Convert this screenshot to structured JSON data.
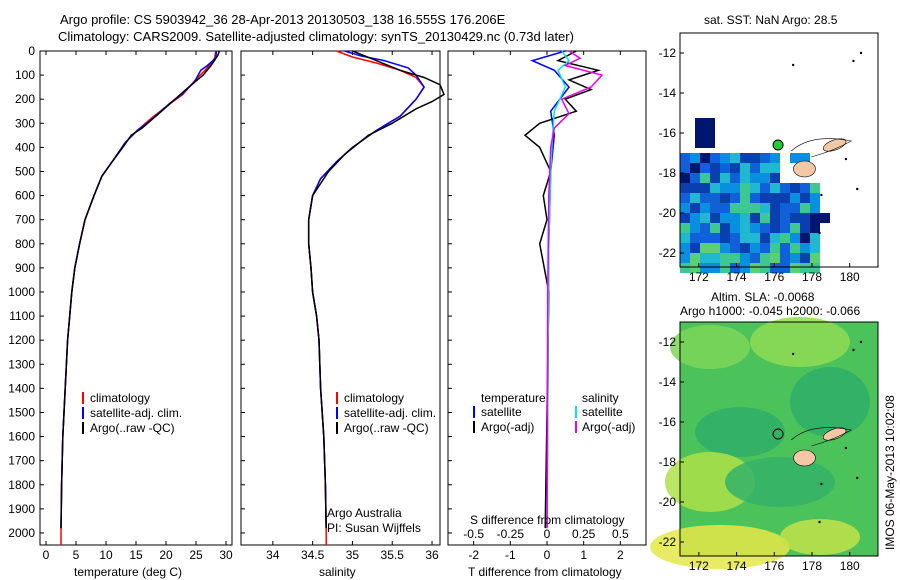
{
  "header": {
    "line1": "Argo profile: CS 5903942_36 28-Apr-2013 20130503_138 16.555S 176.206E",
    "line2": "Climatology: CARS2009. Satellite-adjusted climatology: synTS_20130429.nc (0.73d later)"
  },
  "colors": {
    "climatology": "#ff0000",
    "satellite": "#0000ff",
    "argo": "#000000",
    "satellite_salinity": "#00e5ee",
    "argo_salinity": "#ee00ee",
    "land": "#f5c8a5"
  },
  "depth_axis": {
    "ylim": [
      0,
      2050
    ],
    "ticks": [
      0,
      100,
      200,
      300,
      400,
      500,
      600,
      700,
      800,
      900,
      1000,
      1100,
      1200,
      1300,
      1400,
      1500,
      1600,
      1700,
      1800,
      1900,
      2000
    ]
  },
  "chart_data": [
    {
      "type": "line",
      "name": "temperature",
      "xlabel": "temperature (deg C)",
      "ylabel": "",
      "xlim": [
        -1,
        31
      ],
      "ylim": [
        0,
        2050
      ],
      "xticks": [
        0,
        5,
        10,
        15,
        20,
        25,
        30
      ],
      "legend": [
        "climatology",
        "satellite-adj. clim.",
        "Argo(..raw -QC)"
      ],
      "series": [
        {
          "name": "climatology",
          "color": "#ff0000",
          "points": [
            [
              28.3,
              0
            ],
            [
              28.1,
              30
            ],
            [
              27.2,
              60
            ],
            [
              26.5,
              80
            ],
            [
              24.9,
              120
            ],
            [
              22.8,
              180
            ],
            [
              20.6,
              220
            ],
            [
              17.5,
              280
            ],
            [
              15.2,
              330
            ],
            [
              13.2,
              380
            ],
            [
              11.3,
              450
            ],
            [
              9.3,
              520
            ],
            [
              8.0,
              600
            ],
            [
              6.5,
              700
            ],
            [
              5.6,
              800
            ],
            [
              4.8,
              900
            ],
            [
              4.3,
              1000
            ],
            [
              3.6,
              1200
            ],
            [
              3.2,
              1400
            ],
            [
              2.8,
              1600
            ],
            [
              2.6,
              1800
            ],
            [
              2.5,
              2000
            ],
            [
              2.5,
              2050
            ]
          ]
        },
        {
          "name": "satellite-adj. clim.",
          "color": "#0000ff",
          "points": [
            [
              28.4,
              0
            ],
            [
              28.3,
              30
            ],
            [
              26.9,
              60
            ],
            [
              25.8,
              80
            ],
            [
              24.7,
              130
            ],
            [
              22.6,
              180
            ],
            [
              20.5,
              220
            ],
            [
              17.8,
              280
            ],
            [
              15.2,
              330
            ],
            [
              13.2,
              380
            ],
            [
              11.3,
              450
            ],
            [
              9.3,
              520
            ],
            [
              8.0,
              600
            ],
            [
              6.5,
              700
            ],
            [
              5.6,
              800
            ],
            [
              4.8,
              900
            ],
            [
              4.3,
              1000
            ],
            [
              3.6,
              1200
            ],
            [
              3.2,
              1400
            ],
            [
              2.8,
              1600
            ],
            [
              2.6,
              1800
            ],
            [
              2.5,
              1980
            ]
          ]
        },
        {
          "name": "Argo(..raw -QC)",
          "color": "#000000",
          "points": [
            [
              28.9,
              0
            ],
            [
              28.6,
              20
            ],
            [
              27.5,
              60
            ],
            [
              26.2,
              100
            ],
            [
              23.8,
              150
            ],
            [
              21.5,
              200
            ],
            [
              18.8,
              260
            ],
            [
              16.0,
              320
            ],
            [
              14.2,
              350
            ],
            [
              12.8,
              400
            ],
            [
              11.0,
              460
            ],
            [
              9.3,
              520
            ],
            [
              8.0,
              600
            ],
            [
              6.5,
              700
            ],
            [
              5.6,
              800
            ],
            [
              4.8,
              900
            ],
            [
              4.3,
              1000
            ],
            [
              3.6,
              1200
            ],
            [
              3.2,
              1400
            ],
            [
              2.8,
              1600
            ],
            [
              2.6,
              1800
            ],
            [
              2.5,
              1980
            ]
          ]
        }
      ]
    },
    {
      "type": "line",
      "name": "salinity",
      "xlabel": "salinity",
      "ylabel": "",
      "xlim": [
        33.6,
        36.1
      ],
      "ylim": [
        0,
        2050
      ],
      "xticks": [
        34,
        34.5,
        35,
        35.5,
        36
      ],
      "legend": [
        "climatology",
        "satellite-adj. clim.",
        "Argo(..raw -QC)"
      ],
      "annotation": [
        "Argo Australia",
        "PI: Susan Wijffels"
      ],
      "series": [
        {
          "name": "climatology",
          "color": "#ff0000",
          "points": [
            [
              34.8,
              0
            ],
            [
              35.0,
              25
            ],
            [
              35.3,
              50
            ],
            [
              35.6,
              80
            ],
            [
              35.8,
              110
            ],
            [
              35.9,
              150
            ],
            [
              35.8,
              200
            ],
            [
              35.6,
              270
            ],
            [
              35.3,
              330
            ],
            [
              35.0,
              400
            ],
            [
              34.8,
              460
            ],
            [
              34.6,
              530
            ],
            [
              34.5,
              600
            ],
            [
              34.45,
              700
            ],
            [
              34.45,
              800
            ],
            [
              34.48,
              900
            ],
            [
              34.5,
              1000
            ],
            [
              34.55,
              1100
            ],
            [
              34.58,
              1200
            ],
            [
              34.6,
              1400
            ],
            [
              34.64,
              1600
            ],
            [
              34.66,
              1800
            ],
            [
              34.67,
              2000
            ],
            [
              34.67,
              2050
            ]
          ]
        },
        {
          "name": "satellite-adj. clim.",
          "color": "#0000ff",
          "points": [
            [
              34.9,
              0
            ],
            [
              35.1,
              20
            ],
            [
              35.4,
              40
            ],
            [
              35.7,
              70
            ],
            [
              35.8,
              100
            ],
            [
              35.9,
              150
            ],
            [
              35.8,
              200
            ],
            [
              35.6,
              270
            ],
            [
              35.3,
              330
            ],
            [
              35.0,
              400
            ],
            [
              34.8,
              460
            ],
            [
              34.6,
              530
            ],
            [
              34.5,
              600
            ],
            [
              34.45,
              700
            ],
            [
              34.45,
              800
            ],
            [
              34.48,
              900
            ],
            [
              34.5,
              1000
            ],
            [
              34.55,
              1100
            ],
            [
              34.58,
              1200
            ],
            [
              34.6,
              1400
            ],
            [
              34.64,
              1600
            ],
            [
              34.66,
              1800
            ],
            [
              34.67,
              1980
            ]
          ]
        },
        {
          "name": "Argo(..raw -QC)",
          "color": "#000000",
          "points": [
            [
              35.0,
              0
            ],
            [
              35.3,
              40
            ],
            [
              35.6,
              80
            ],
            [
              35.9,
              110
            ],
            [
              36.1,
              140
            ],
            [
              36.15,
              180
            ],
            [
              36.0,
              210
            ],
            [
              35.8,
              240
            ],
            [
              35.5,
              300
            ],
            [
              35.2,
              350
            ],
            [
              34.9,
              430
            ],
            [
              34.7,
              500
            ],
            [
              34.6,
              550
            ],
            [
              34.5,
              600
            ],
            [
              34.45,
              700
            ],
            [
              34.45,
              800
            ],
            [
              34.48,
              900
            ],
            [
              34.5,
              1000
            ],
            [
              34.55,
              1100
            ],
            [
              34.58,
              1200
            ],
            [
              34.6,
              1400
            ],
            [
              34.64,
              1600
            ],
            [
              34.66,
              1800
            ],
            [
              34.67,
              1980
            ]
          ]
        }
      ]
    },
    {
      "type": "line",
      "name": "difference from climatology",
      "xlabel": "T difference from climatology",
      "xlabel2": "S difference from climatology",
      "xlim": [
        -2.7,
        2.7
      ],
      "ylim": [
        0,
        2050
      ],
      "xticks_T": [
        -2,
        -1,
        0,
        1,
        2
      ],
      "xticks_S_labels": [
        "-0.5",
        "-0.25",
        "0",
        "0.25",
        "0.5"
      ],
      "xticks_S_positions": [
        -2,
        -1,
        0,
        1,
        2
      ],
      "legend_headers": [
        "temperature",
        "salinity"
      ],
      "legend": [
        "satellite",
        "Argo(-adj)",
        "satellite",
        "Argo(-adj)"
      ],
      "series": [
        {
          "name": "temperature satellite",
          "color": "#0000ff",
          "points": [
            [
              0.5,
              0
            ],
            [
              -0.4,
              40
            ],
            [
              0.2,
              80
            ],
            [
              0.6,
              150
            ],
            [
              0.1,
              250
            ],
            [
              0.2,
              350
            ],
            [
              0.1,
              500
            ],
            [
              0.05,
              800
            ],
            [
              0.02,
              1500
            ],
            [
              0.0,
              1980
            ]
          ]
        },
        {
          "name": "temperature Argo(-adj)",
          "color": "#000000",
          "points": [
            [
              0.8,
              0
            ],
            [
              0.3,
              40
            ],
            [
              1.4,
              80
            ],
            [
              0.6,
              120
            ],
            [
              1.2,
              160
            ],
            [
              0.5,
              200
            ],
            [
              0.8,
              250
            ],
            [
              -0.2,
              300
            ],
            [
              -0.6,
              350
            ],
            [
              -0.2,
              400
            ],
            [
              0.1,
              500
            ],
            [
              -0.1,
              600
            ],
            [
              0.0,
              700
            ],
            [
              -0.2,
              800
            ],
            [
              0.05,
              1000
            ],
            [
              0.0,
              1500
            ],
            [
              -0.05,
              1980
            ]
          ]
        },
        {
          "name": "salinity satellite",
          "color": "#00e5ee",
          "points": [
            [
              0.4,
              0
            ],
            [
              0.6,
              40
            ],
            [
              0.3,
              80
            ],
            [
              0.5,
              150
            ],
            [
              0.2,
              250
            ],
            [
              0.15,
              350
            ],
            [
              0.1,
              500
            ],
            [
              0.05,
              800
            ],
            [
              0.02,
              1500
            ],
            [
              0.0,
              1980
            ]
          ]
        },
        {
          "name": "salinity Argo(-adj)",
          "color": "#ee00ee",
          "points": [
            [
              0.6,
              0
            ],
            [
              0.9,
              30
            ],
            [
              0.5,
              60
            ],
            [
              1.5,
              100
            ],
            [
              1.2,
              150
            ],
            [
              0.4,
              200
            ],
            [
              0.6,
              260
            ],
            [
              0.2,
              320
            ],
            [
              0.1,
              400
            ],
            [
              0.05,
              600
            ],
            [
              0.02,
              1000
            ],
            [
              0.0,
              1980
            ]
          ]
        }
      ]
    },
    {
      "type": "heatmap",
      "name": "sat SST map",
      "title": "sat. SST: NaN Argo: 28.5",
      "xlim": [
        171,
        181.5
      ],
      "ylim": [
        -22.7,
        -11
      ],
      "xticks": [
        172,
        174,
        176,
        178,
        180
      ],
      "yticks": [
        -12,
        -14,
        -16,
        -18,
        -20,
        -22
      ],
      "argo_position": [
        176.2,
        -16.6
      ]
    },
    {
      "type": "heatmap",
      "name": "altimetry SLA map",
      "title": "Altim. SLA: -0.0068",
      "subtitle": "Argo h1000: -0.045 h2000: -0.066",
      "xlim": [
        171,
        181.5
      ],
      "ylim": [
        -22.7,
        -11
      ],
      "xticks": [
        172,
        174,
        176,
        178,
        180
      ],
      "yticks": [
        -12,
        -14,
        -16,
        -18,
        -20,
        -22
      ],
      "argo_position": [
        176.2,
        -16.6
      ]
    }
  ],
  "legends": {
    "panel1": [
      "climatology",
      "satellite-adj. clim.",
      "Argo(..raw -QC)"
    ],
    "panel2": [
      "climatology",
      "satellite-adj. clim.",
      "Argo(..raw -QC)"
    ],
    "panel3_headers": [
      "temperature",
      "salinity"
    ],
    "panel3_items": [
      "satellite",
      "Argo(-adj)",
      "satellite",
      "Argo(-adj)"
    ]
  },
  "footer": {
    "imos_stamp": "IMOS 06-May-2013 10:02:08"
  }
}
